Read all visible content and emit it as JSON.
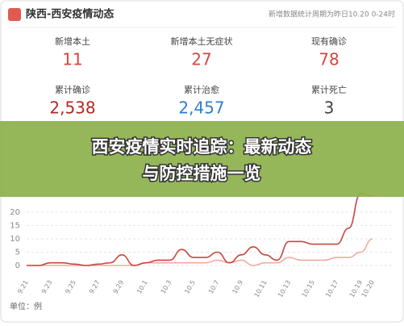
{
  "header": {
    "title": "陕西-西安疫情动态",
    "note": "新增数据统计周期为昨日10.20 0-24时"
  },
  "stats": [
    {
      "label": "新增本土",
      "value": "11",
      "color": "#d9453d"
    },
    {
      "label": "新增本土无症状",
      "value": "27",
      "color": "#d9453d"
    },
    {
      "label": "现有确诊",
      "value": "78",
      "color": "#d9453d"
    },
    {
      "label": "累计确诊",
      "value": "2,538",
      "color": "#b22a22"
    },
    {
      "label": "累计治愈",
      "value": "2,457",
      "color": "#2f7fd0"
    },
    {
      "label": "累计死亡",
      "value": "3",
      "color": "#444444"
    }
  ],
  "banner": {
    "line1": "西安疫情实时追踪：最新动态与防控措施一览",
    "line2": "与防控措施一览"
  },
  "chart_data": {
    "type": "line",
    "categories": [
      "9.21",
      null,
      "9.23",
      null,
      "9.25",
      null,
      "9.27",
      null,
      "9.29",
      null,
      "10.1",
      null,
      "10.3",
      null,
      "10.5",
      null,
      "10.7",
      null,
      "10.9",
      null,
      "10.11",
      null,
      "10.13",
      null,
      "10.15",
      null,
      "10.17",
      null,
      "10.19",
      "10.20"
    ],
    "series": [
      {
        "color": "#c9463f",
        "values": [
          0,
          0,
          1,
          1,
          0.5,
          0,
          0.5,
          1,
          4,
          0,
          1,
          2,
          2,
          6,
          3,
          3,
          5,
          1,
          4,
          7,
          4,
          2,
          9,
          9,
          8,
          8,
          8,
          14,
          27,
          26
        ]
      },
      {
        "color": "#f2a9a1",
        "values": [
          0,
          0,
          0,
          0,
          0,
          0,
          0,
          0,
          0,
          0,
          1,
          1,
          1,
          1,
          1,
          1,
          2,
          1,
          2,
          0,
          1,
          1,
          3,
          2,
          2,
          2,
          3,
          3,
          5,
          10
        ]
      }
    ],
    "ylim": [
      0,
      30
    ],
    "yticks": [
      0,
      5,
      10,
      15,
      20
    ],
    "grid": true,
    "unit_label": "单位：例"
  }
}
